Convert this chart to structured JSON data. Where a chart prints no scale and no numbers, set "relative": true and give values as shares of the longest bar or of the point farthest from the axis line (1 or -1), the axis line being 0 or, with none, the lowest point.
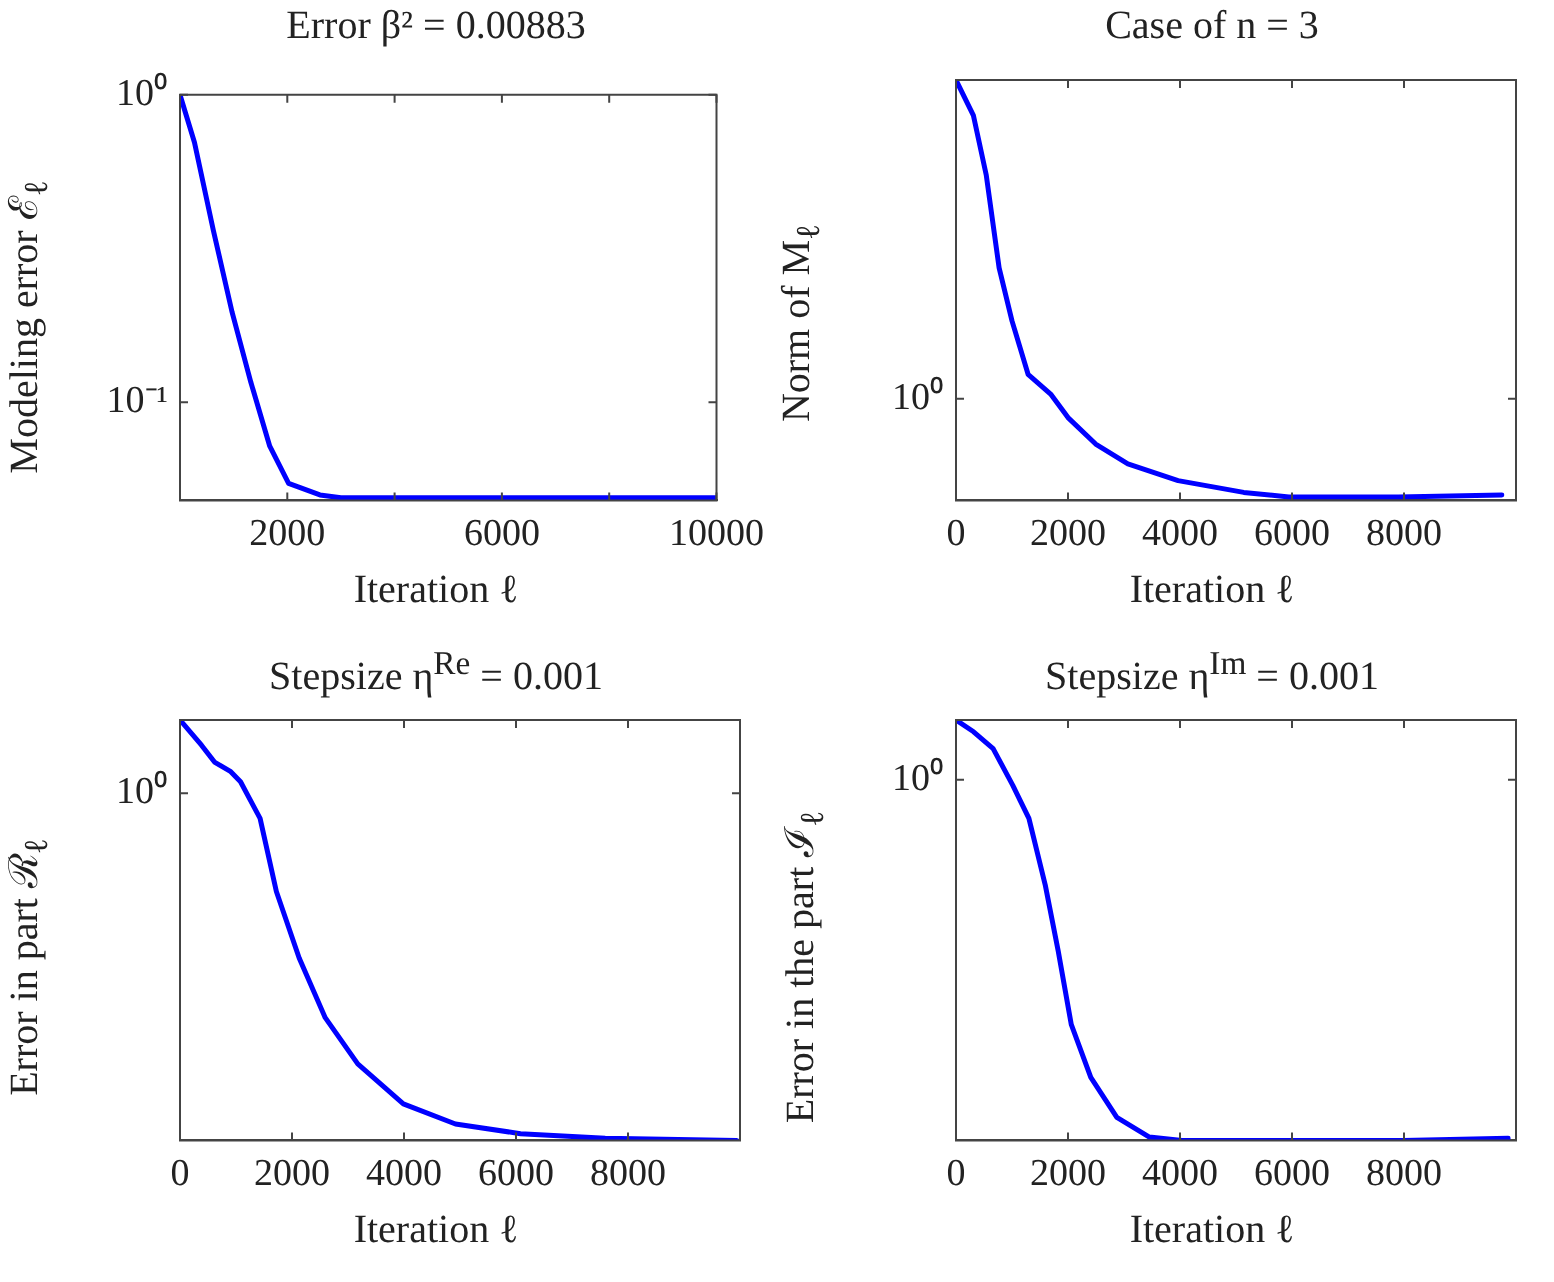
{
  "chart_data": [
    {
      "type": "line",
      "title": "Error β² = 0.00883",
      "xlabel": "Iteration ℓ",
      "ylabel": "Modeling error ℰ$_{ℓ}$",
      "log": "y",
      "grid": false,
      "legend": false,
      "xlim": [
        0,
        10000
      ],
      "xticks": [
        {
          "value": 0,
          "label": null
        },
        2000,
        {
          "value": 4000,
          "label": null
        },
        6000,
        {
          "value": 8000,
          "label": null
        },
        10000
      ],
      "ylim": [
        0.048,
        1
      ],
      "yticks": [
        {
          "value": 1,
          "label": "10⁰"
        },
        {
          "value": 0.1,
          "label": "10⁻¹"
        }
      ],
      "x": [
        0,
        270,
        621,
        972,
        1322,
        1673,
        2024,
        2608,
        3000,
        5000,
        10000
      ],
      "series": [
        {
          "color": "#0000ff",
          "values": [
            1,
            0.7,
            0.363,
            0.196,
            0.116,
            0.072,
            0.0545,
            0.05,
            0.049,
            0.049,
            0.049
          ]
        }
      ]
    },
    {
      "type": "line",
      "title": "Case of n = 3",
      "xlabel": "Iteration ℓ",
      "ylabel": "Norm of M$_{ℓ}$",
      "relative": true,
      "grid": false,
      "legend": false,
      "xlim": [
        0,
        10000
      ],
      "xticks": [
        0,
        2000,
        4000,
        6000,
        8000
      ],
      "annotations": [
        "10⁰"
      ],
      "x": [
        0,
        310,
        540,
        770,
        1000,
        1287,
        1690,
        2000,
        2494,
        3069,
        3966,
        5138,
        5943,
        7897,
        9747
      ],
      "series": [
        {
          "color": "#0000ff",
          "values": [
            1,
            0.916,
            0.774,
            0.553,
            0.427,
            0.3,
            0.253,
            0.197,
            0.134,
            0.087,
            0.047,
            0.019,
            0.008,
            0.008,
            0.013
          ]
        }
      ]
    },
    {
      "type": "line",
      "title": "Stepsize η$^{Re}$ = 0.001",
      "xlabel": "Iteration ℓ",
      "ylabel": "Error in part ℛ$_{ℓ}$",
      "relative": true,
      "grid": false,
      "legend": false,
      "xlim": [
        0,
        10000
      ],
      "xticks": [
        0,
        2000,
        4000,
        6000,
        8000
      ],
      "annotations": [
        "10⁰"
      ],
      "x": [
        0,
        384,
        616,
        907,
        1081,
        1430,
        1721,
        2128,
        2593,
        3174,
        3988,
        4919,
        6081,
        7593,
        9942
      ],
      "series": [
        {
          "color": "#0000ff",
          "values": [
            1,
            0.94,
            0.9,
            0.877,
            0.853,
            0.766,
            0.592,
            0.434,
            0.292,
            0.182,
            0.087,
            0.039,
            0.016,
            0.005,
            0
          ]
        }
      ]
    },
    {
      "type": "line",
      "title": "Stepsize η$^{Im}$ = 0.001",
      "xlabel": "Iteration ℓ",
      "ylabel": "Error in the part ℐ$_{ℓ}$",
      "relative": true,
      "grid": false,
      "legend": false,
      "xlim": [
        0,
        10000
      ],
      "xticks": [
        0,
        2000,
        4000,
        6000,
        8000
      ],
      "annotations": [
        "10⁰"
      ],
      "x": [
        0,
        314,
        663,
        1012,
        1302,
        1593,
        1826,
        2058,
        2407,
        2872,
        3453,
        4035,
        5663,
        7988,
        9860
      ],
      "series": [
        {
          "color": "#0000ff",
          "values": [
            1,
            0.972,
            0.932,
            0.845,
            0.766,
            0.608,
            0.45,
            0.276,
            0.15,
            0.055,
            0.008,
            0,
            0,
            0,
            0.005
          ]
        }
      ]
    }
  ]
}
